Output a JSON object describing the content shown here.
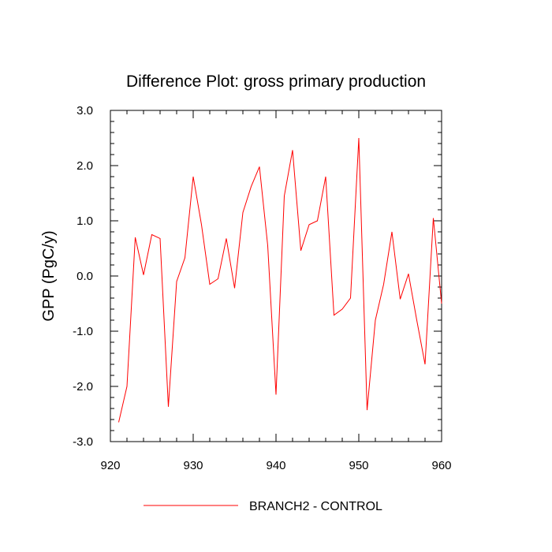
{
  "chart_data": {
    "type": "line",
    "title": "Difference Plot: gross primary production",
    "xlabel": "",
    "ylabel": "GPP  (PgC/y)",
    "xlim": [
      920,
      960
    ],
    "ylim": [
      -3.0,
      3.0
    ],
    "xticks": [
      920,
      930,
      940,
      950,
      960
    ],
    "xtick_labels": [
      "920",
      "930",
      "940",
      "950",
      "960"
    ],
    "yticks": [
      3.0,
      2.0,
      1.0,
      0.0,
      -1.0,
      -2.0,
      -3.0
    ],
    "ytick_labels": [
      "3.0",
      "2.0",
      "1.0",
      "0.0",
      "-1.0",
      "-2.0",
      "-3.0"
    ],
    "grid": false,
    "legend_position": "bottom-center",
    "series": [
      {
        "name": "BRANCH2 - CONTROL",
        "color": "#ff0000",
        "x": [
          921,
          922,
          923,
          924,
          925,
          926,
          927,
          928,
          929,
          930,
          931,
          932,
          933,
          934,
          935,
          936,
          937,
          938,
          939,
          940,
          941,
          942,
          943,
          944,
          945,
          946,
          947,
          948,
          949,
          950,
          951,
          952,
          953,
          954,
          955,
          956,
          957,
          958,
          959,
          960
        ],
        "y": [
          -2.65,
          -2.0,
          0.7,
          0.02,
          0.75,
          0.68,
          -2.37,
          -0.1,
          0.33,
          1.8,
          0.93,
          -0.15,
          -0.05,
          0.68,
          -0.22,
          1.15,
          1.62,
          1.98,
          0.55,
          -2.15,
          1.45,
          2.28,
          0.46,
          0.93,
          1.0,
          1.8,
          -0.71,
          -0.6,
          -0.4,
          2.5,
          -2.43,
          -0.8,
          -0.15,
          0.8,
          -0.42,
          0.04,
          -0.8,
          -1.6,
          1.05,
          -0.5
        ]
      }
    ]
  }
}
